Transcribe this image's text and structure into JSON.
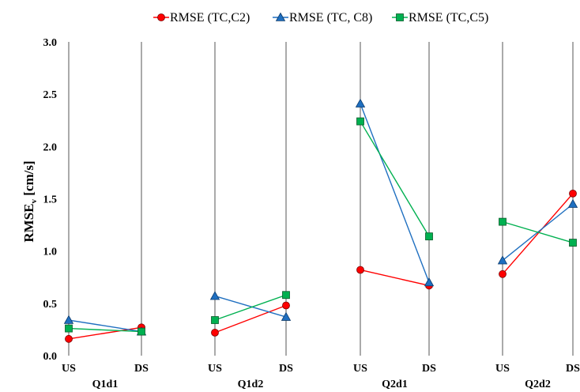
{
  "chart_data": {
    "type": "line",
    "title": "",
    "ylabel_main": "RMSE",
    "ylabel_sub": "v",
    "ylabel_unit": " [cm/s]",
    "ylim": [
      0,
      3.0
    ],
    "yticks": [
      "0.0",
      "0.5",
      "1.0",
      "1.5",
      "2.0",
      "2.5",
      "3.0"
    ],
    "grid": "vertical",
    "legend_position": "top",
    "groups": [
      {
        "name": "Q1d1",
        "points": [
          "US",
          "DS"
        ]
      },
      {
        "name": "Q1d2",
        "points": [
          "US",
          "DS"
        ]
      },
      {
        "name": "Q2d1",
        "points": [
          "US",
          "DS"
        ]
      },
      {
        "name": "Q2d2",
        "points": [
          "US",
          "DS"
        ]
      }
    ],
    "series": [
      {
        "name": "RMSE (TC,C2)",
        "color": "#ff0000",
        "marker": "circle",
        "values": [
          [
            0.16,
            0.27
          ],
          [
            0.22,
            0.48
          ],
          [
            0.82,
            0.67
          ],
          [
            0.78,
            1.55
          ]
        ]
      },
      {
        "name": "RMSE (TC, C8)",
        "color": "#1f6fc0",
        "marker": "triangle",
        "values": [
          [
            0.34,
            0.23
          ],
          [
            0.57,
            0.37
          ],
          [
            2.41,
            0.7
          ],
          [
            0.91,
            1.45
          ]
        ]
      },
      {
        "name": "RMSE (TC,C5)",
        "color": "#00b050",
        "marker": "square",
        "values": [
          [
            0.26,
            0.23
          ],
          [
            0.34,
            0.58
          ],
          [
            2.24,
            1.14
          ],
          [
            1.28,
            1.08
          ]
        ]
      }
    ]
  }
}
